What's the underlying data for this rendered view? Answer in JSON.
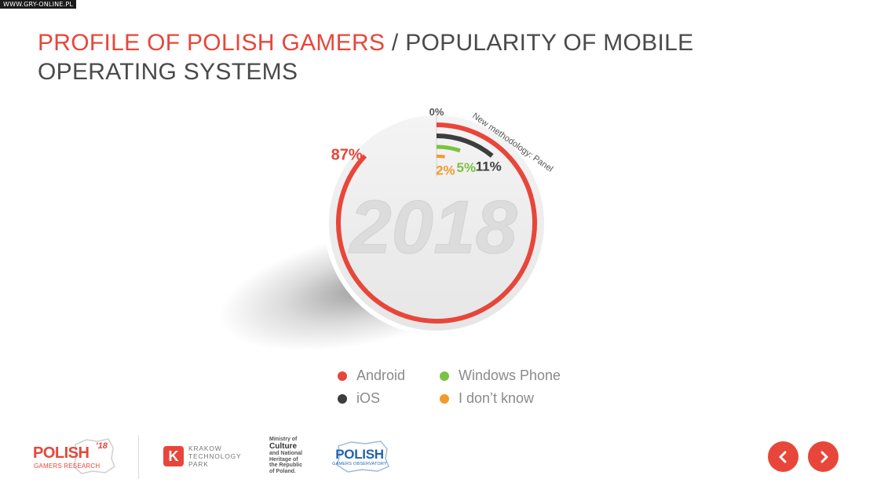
{
  "watermark": "WWW.GRY-ONLINE.PL",
  "title": {
    "highlight": "PROFILE OF POLISH GAMERS",
    "rest": " / POPULARITY OF MOBILE OPERATING SYSTEMS"
  },
  "chart_data": {
    "type": "pie",
    "center_label": "2018",
    "annotation": "New methodology: Panel",
    "zero_label": "0%",
    "series": [
      {
        "name": "Android",
        "value": 87,
        "label": "87%",
        "color": "#e8463a"
      },
      {
        "name": "iOS",
        "value": 11,
        "label": "11%",
        "color": "#3d3d3d"
      },
      {
        "name": "Windows Phone",
        "value": 5,
        "label": "5%",
        "color": "#7cc242"
      },
      {
        "name": "I don't know",
        "value": 2,
        "label": "2%",
        "color": "#f39a2c"
      }
    ],
    "legend_placement": "bottom"
  },
  "legend": [
    {
      "label": "Android",
      "color": "#e8463a"
    },
    {
      "label": "Windows Phone",
      "color": "#7cc242"
    },
    {
      "label": "iOS",
      "color": "#3d3d3d"
    },
    {
      "label": "I don’t know",
      "color": "#f39a2c"
    }
  ],
  "logos": {
    "polish_word": "POLISH",
    "polish_year": "'18",
    "polish_sub": "GAMERS RESEARCH",
    "ktp_letter": "K",
    "ktp_line1": "KRAKOW",
    "ktp_line2": "TECHNOLOGY",
    "ktp_line3": "PARK",
    "mc_line1": "Ministry of",
    "mc_line2": "Culture",
    "mc_line3": "and National",
    "mc_line4": "Heritage of",
    "mc_line5": "the Republic",
    "mc_line6": "of Poland",
    "pgo_word": "POLISH",
    "pgo_sub": "GAMERS OBSERVATORY"
  },
  "nav": {
    "prev_icon": "chevron-left-icon",
    "next_icon": "chevron-right-icon",
    "color": "#e8463a"
  }
}
